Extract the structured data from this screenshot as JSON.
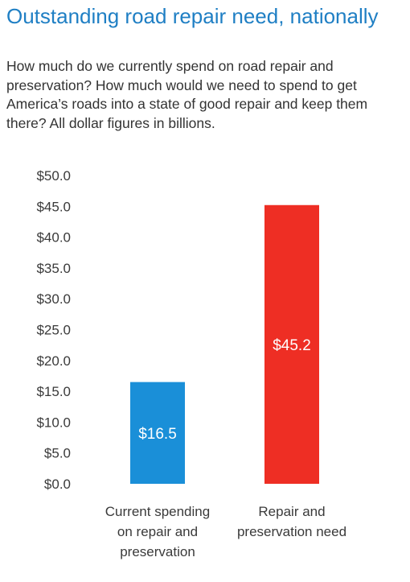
{
  "header": {
    "title": "Outstanding road repair need, nationally",
    "subtitle": "How much do we currently spend on road repair and preservation? How much would we need to spend to get America’s roads into a state of good repair and keep them there? All dollar figures in billions."
  },
  "chart_data": {
    "type": "bar",
    "title": "Outstanding road repair need, nationally",
    "subtitle": "How much do we currently spend on road repair and preservation? How much would we need to spend to get America’s roads into a state of good repair and keep them there? All dollar figures in billions.",
    "categories": [
      [
        "Current spending",
        "on repair and",
        "preservation"
      ],
      [
        "Repair and",
        "preservation need"
      ]
    ],
    "values": [
      16.5,
      45.2
    ],
    "value_labels": [
      "$16.5",
      "$45.2"
    ],
    "colors": [
      "#1a8fd8",
      "#ee2e24"
    ],
    "ylim": [
      0,
      50
    ],
    "yticks": [
      0,
      5,
      10,
      15,
      20,
      25,
      30,
      35,
      40,
      45,
      50
    ],
    "ytick_labels": [
      "$0.0",
      "$5.0",
      "$10.0",
      "$15.0",
      "$20.0",
      "$25.0",
      "$30.0",
      "$35.0",
      "$40.0",
      "$45.0",
      "$50.0"
    ],
    "xlabel": "",
    "ylabel": "",
    "grid": false,
    "legend": "none"
  }
}
